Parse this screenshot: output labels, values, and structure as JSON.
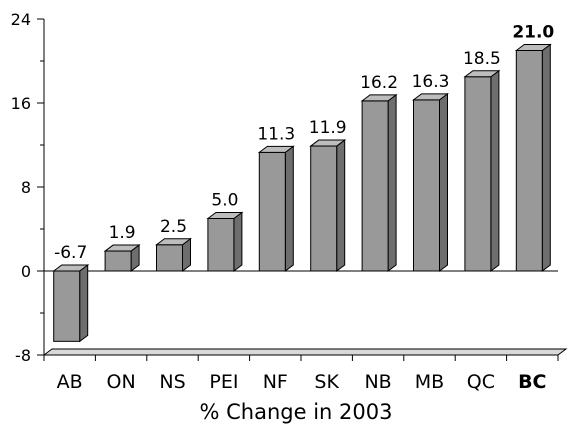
{
  "chart_data": {
    "type": "bar",
    "categories": [
      "AB",
      "ON",
      "NS",
      "PEI",
      "NF",
      "SK",
      "NB",
      "MB",
      "QC",
      "BC"
    ],
    "values": [
      -6.7,
      1.9,
      2.5,
      5.0,
      11.3,
      11.9,
      16.2,
      16.3,
      18.5,
      21.0
    ],
    "value_labels": [
      "-6.7",
      "1.9",
      "2.5",
      "5.0",
      "11.3",
      "11.9",
      "16.2",
      "16.3",
      "18.5",
      "21.0"
    ],
    "emphasized_category": "BC",
    "xlabel": "% Change in 2003",
    "ylabel": "",
    "ylim": [
      -8,
      24
    ],
    "yticks": [
      -8,
      0,
      8,
      16,
      24
    ],
    "ytick_labels": [
      "-8",
      "0",
      "8",
      "16",
      "24"
    ],
    "grid": false,
    "legend": "none",
    "style": "3d",
    "colors": {
      "bar_front": "#999999",
      "bar_side": "#6e6e6e",
      "bar_top": "#bdbdbd",
      "outline": "#000000",
      "floor": "#d9d9d9"
    }
  }
}
